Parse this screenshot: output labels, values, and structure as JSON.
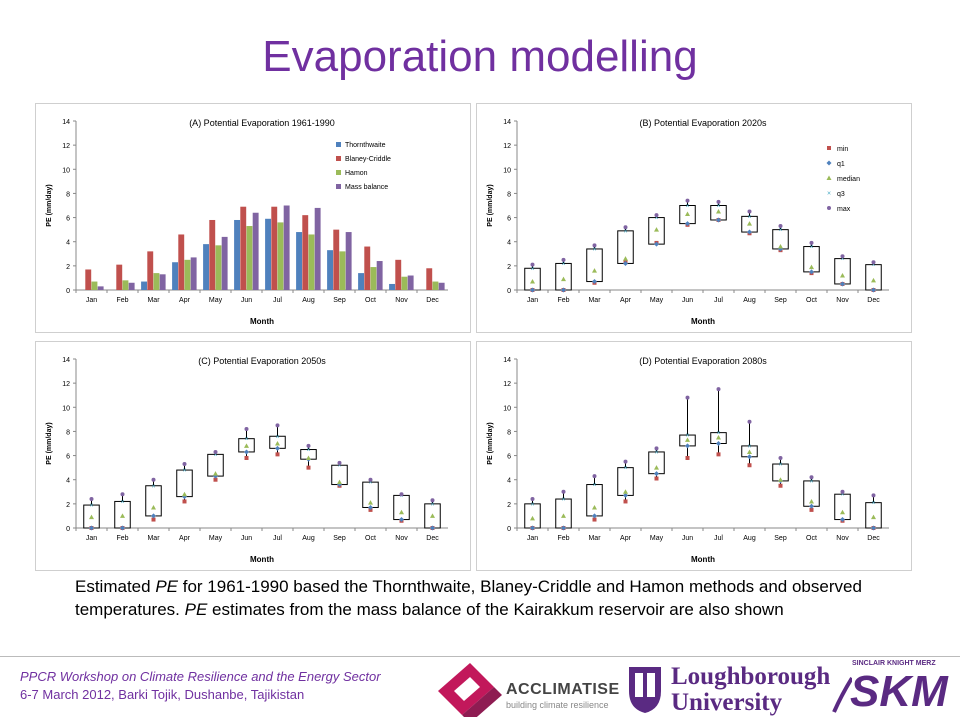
{
  "slide": {
    "title": "Evaporation modelling",
    "caption": {
      "p1": "Estimated ",
      "pe1": "PE",
      "p2": " for 1961-1990 based the Thornthwaite, Blaney-Criddle and Hamon methods and observed temperatures. ",
      "pe2": "PE",
      "p3": " estimates from the mass balance of the Kairakkum reservoir are also shown"
    },
    "footer": {
      "line1": "PPCR Workshop on Climate Resilience and the Energy Sector",
      "line2": "6-7 March 2012, Barki Tojik, Dushanbe, Tajikistan"
    },
    "logos": {
      "acclimatise_name": "ACCLIMATISE",
      "acclimatise_tagline": "building climate resilience",
      "loughborough_line1": "Loughborough",
      "loughborough_line2": "University",
      "skm_small": "SINCLAIR KNIGHT MERZ",
      "skm_big": "SKM"
    },
    "colors": {
      "title": "#7030a0",
      "thornthwaite": "#4f81bd",
      "blaney": "#c0504d",
      "hamon": "#9bbb59",
      "mass": "#8064a2",
      "median": "#9bbb59",
      "q3": "#4bacc6"
    }
  },
  "chart_data": [
    {
      "type": "bar",
      "title": "(A) Potential Evaporation  1961-1990",
      "xlabel": "Month",
      "ylabel": "PE (mm/day)",
      "ylim": [
        0,
        14
      ],
      "yticks": [
        0,
        2,
        4,
        6,
        8,
        10,
        12,
        14
      ],
      "categories": [
        "Jan",
        "Feb",
        "Mar",
        "Apr",
        "May",
        "Jun",
        "Jul",
        "Aug",
        "Sep",
        "Oct",
        "Nov",
        "Dec"
      ],
      "legend_position": "top-right",
      "series": [
        {
          "name": "Thornthwaite",
          "color": "#4f81bd",
          "values": [
            0,
            0,
            0.7,
            2.3,
            3.8,
            5.8,
            5.9,
            4.8,
            3.3,
            1.4,
            0.5,
            0
          ]
        },
        {
          "name": "Blaney-Criddle",
          "color": "#c0504d",
          "values": [
            1.7,
            2.1,
            3.2,
            4.6,
            5.8,
            6.9,
            6.9,
            6.2,
            5.0,
            3.6,
            2.5,
            1.8
          ]
        },
        {
          "name": "Hamon",
          "color": "#9bbb59",
          "values": [
            0.7,
            0.8,
            1.4,
            2.5,
            3.7,
            5.3,
            5.6,
            4.6,
            3.2,
            1.9,
            1.1,
            0.7
          ]
        },
        {
          "name": "Mass balance",
          "color": "#8064a2",
          "values": [
            0.3,
            0.6,
            1.3,
            2.7,
            4.4,
            6.4,
            7.0,
            6.8,
            4.8,
            2.4,
            1.2,
            0.6
          ]
        }
      ]
    },
    {
      "type": "box",
      "title": "(B) Potential Evaporation 2020s",
      "xlabel": "Month",
      "ylabel": "PE (mm/day)",
      "ylim": [
        0,
        14
      ],
      "yticks": [
        0,
        2,
        4,
        6,
        8,
        10,
        12,
        14
      ],
      "categories": [
        "Jan",
        "Feb",
        "Mar",
        "Apr",
        "May",
        "Jun",
        "Jul",
        "Aug",
        "Sep",
        "Oct",
        "Nov",
        "Dec"
      ],
      "legend_position": "top-right",
      "legend": [
        "min",
        "q1",
        "median",
        "q3",
        "max"
      ],
      "min": [
        0.0,
        0.0,
        0.6,
        2.3,
        3.9,
        5.4,
        5.8,
        4.7,
        3.3,
        1.4,
        0.5,
        0.0
      ],
      "q1": [
        0.0,
        0.0,
        0.7,
        2.2,
        3.8,
        5.5,
        5.8,
        4.8,
        3.4,
        1.5,
        0.5,
        0.0
      ],
      "median": [
        0.7,
        0.9,
        1.6,
        2.6,
        5.0,
        6.3,
        6.5,
        5.5,
        3.6,
        1.9,
        1.2,
        0.8
      ],
      "q3": [
        1.8,
        2.2,
        3.4,
        4.9,
        6.0,
        7.0,
        7.0,
        6.1,
        5.0,
        3.6,
        2.6,
        2.1
      ],
      "max": [
        2.1,
        2.5,
        3.7,
        5.2,
        6.2,
        7.4,
        7.3,
        6.5,
        5.3,
        3.9,
        2.8,
        2.3
      ]
    },
    {
      "type": "box",
      "title": "(C) Potential Evaporation 2050s",
      "xlabel": "Month",
      "ylabel": "PE (mm/day)",
      "ylim": [
        0,
        14
      ],
      "yticks": [
        0,
        2,
        4,
        6,
        8,
        10,
        12,
        14
      ],
      "categories": [
        "Jan",
        "Feb",
        "Mar",
        "Apr",
        "May",
        "Jun",
        "Jul",
        "Aug",
        "Sep",
        "Oct",
        "Nov",
        "Dec"
      ],
      "min": [
        0.0,
        0.0,
        0.7,
        2.2,
        4.0,
        5.8,
        6.1,
        5.0,
        3.5,
        1.5,
        0.6,
        0.0
      ],
      "q1": [
        0.0,
        0.0,
        1.0,
        2.6,
        4.3,
        6.3,
        6.6,
        5.7,
        3.6,
        1.7,
        0.7,
        0.0
      ],
      "median": [
        0.9,
        1.0,
        1.7,
        2.8,
        4.5,
        6.8,
        7.0,
        5.8,
        3.8,
        2.1,
        1.3,
        1.0
      ],
      "q3": [
        1.9,
        2.2,
        3.5,
        4.8,
        6.1,
        7.4,
        7.6,
        6.5,
        5.2,
        3.8,
        2.7,
        2.0
      ],
      "max": [
        2.4,
        2.8,
        4.0,
        5.3,
        6.3,
        8.2,
        8.5,
        6.8,
        5.4,
        4.0,
        2.8,
        2.3
      ]
    },
    {
      "type": "box",
      "title": "(D) Potential Evaporation 2080s",
      "xlabel": "Month",
      "ylabel": "PE (mm/day)",
      "ylim": [
        0,
        14
      ],
      "yticks": [
        0,
        2,
        4,
        6,
        8,
        10,
        12,
        14
      ],
      "categories": [
        "Jan",
        "Feb",
        "Mar",
        "Apr",
        "May",
        "Jun",
        "Jul",
        "Aug",
        "Sep",
        "Oct",
        "Nov",
        "Dec"
      ],
      "min": [
        0.0,
        0.0,
        0.7,
        2.2,
        4.1,
        5.8,
        6.1,
        5.2,
        3.5,
        1.5,
        0.6,
        0.0
      ],
      "q1": [
        0.0,
        0.0,
        1.0,
        2.7,
        4.5,
        6.8,
        7.0,
        5.9,
        3.9,
        1.8,
        0.7,
        0.0
      ],
      "median": [
        0.8,
        1.0,
        1.7,
        3.0,
        5.0,
        7.3,
        7.5,
        6.3,
        4.0,
        2.2,
        1.3,
        0.9
      ],
      "q3": [
        2.0,
        2.4,
        3.6,
        5.0,
        6.3,
        7.7,
        7.9,
        6.8,
        5.3,
        3.9,
        2.8,
        2.1
      ],
      "max": [
        2.4,
        3.0,
        4.3,
        5.5,
        6.6,
        10.8,
        11.5,
        8.8,
        5.8,
        4.2,
        3.0,
        2.7
      ]
    }
  ]
}
